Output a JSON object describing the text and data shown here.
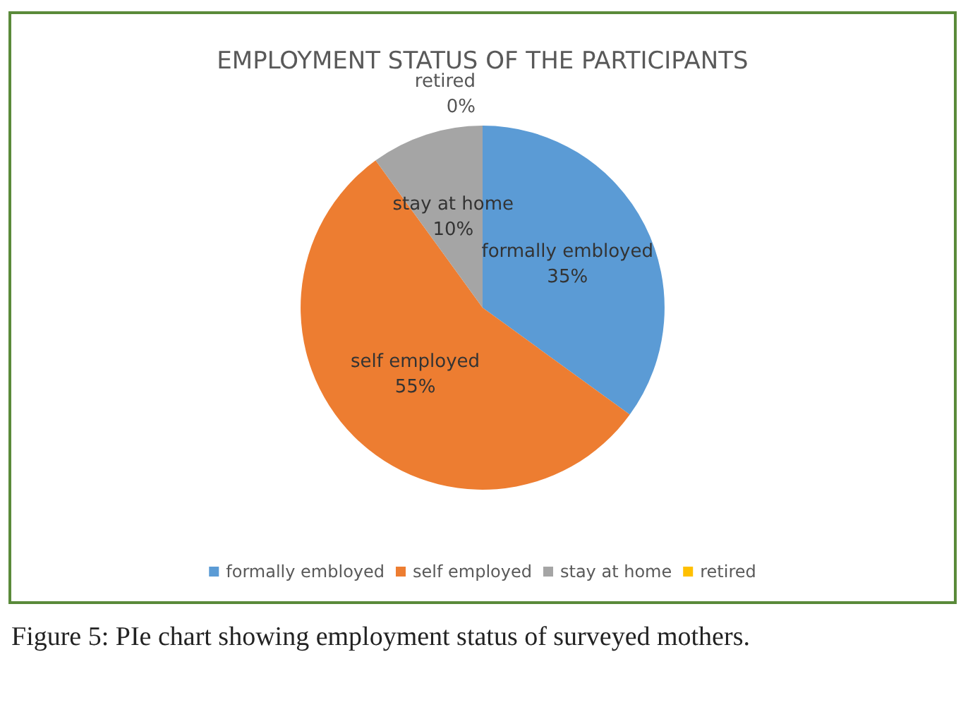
{
  "chart_data": {
    "type": "pie",
    "title": "EMPLOYMENT STATUS OF THE PARTICIPANTS",
    "categories": [
      "formally embloyed",
      "self employed",
      "stay at home",
      "retired"
    ],
    "values": [
      35,
      55,
      10,
      0
    ],
    "colors": [
      "#5b9bd5",
      "#ed7d31",
      "#a5a5a5",
      "#ffc000"
    ],
    "value_labels": [
      "35%",
      "55%",
      "10%",
      "0%"
    ],
    "legend": "bottom",
    "annotations": [
      "Figure 5: PIe chart showing employment status of surveyed mothers."
    ]
  }
}
